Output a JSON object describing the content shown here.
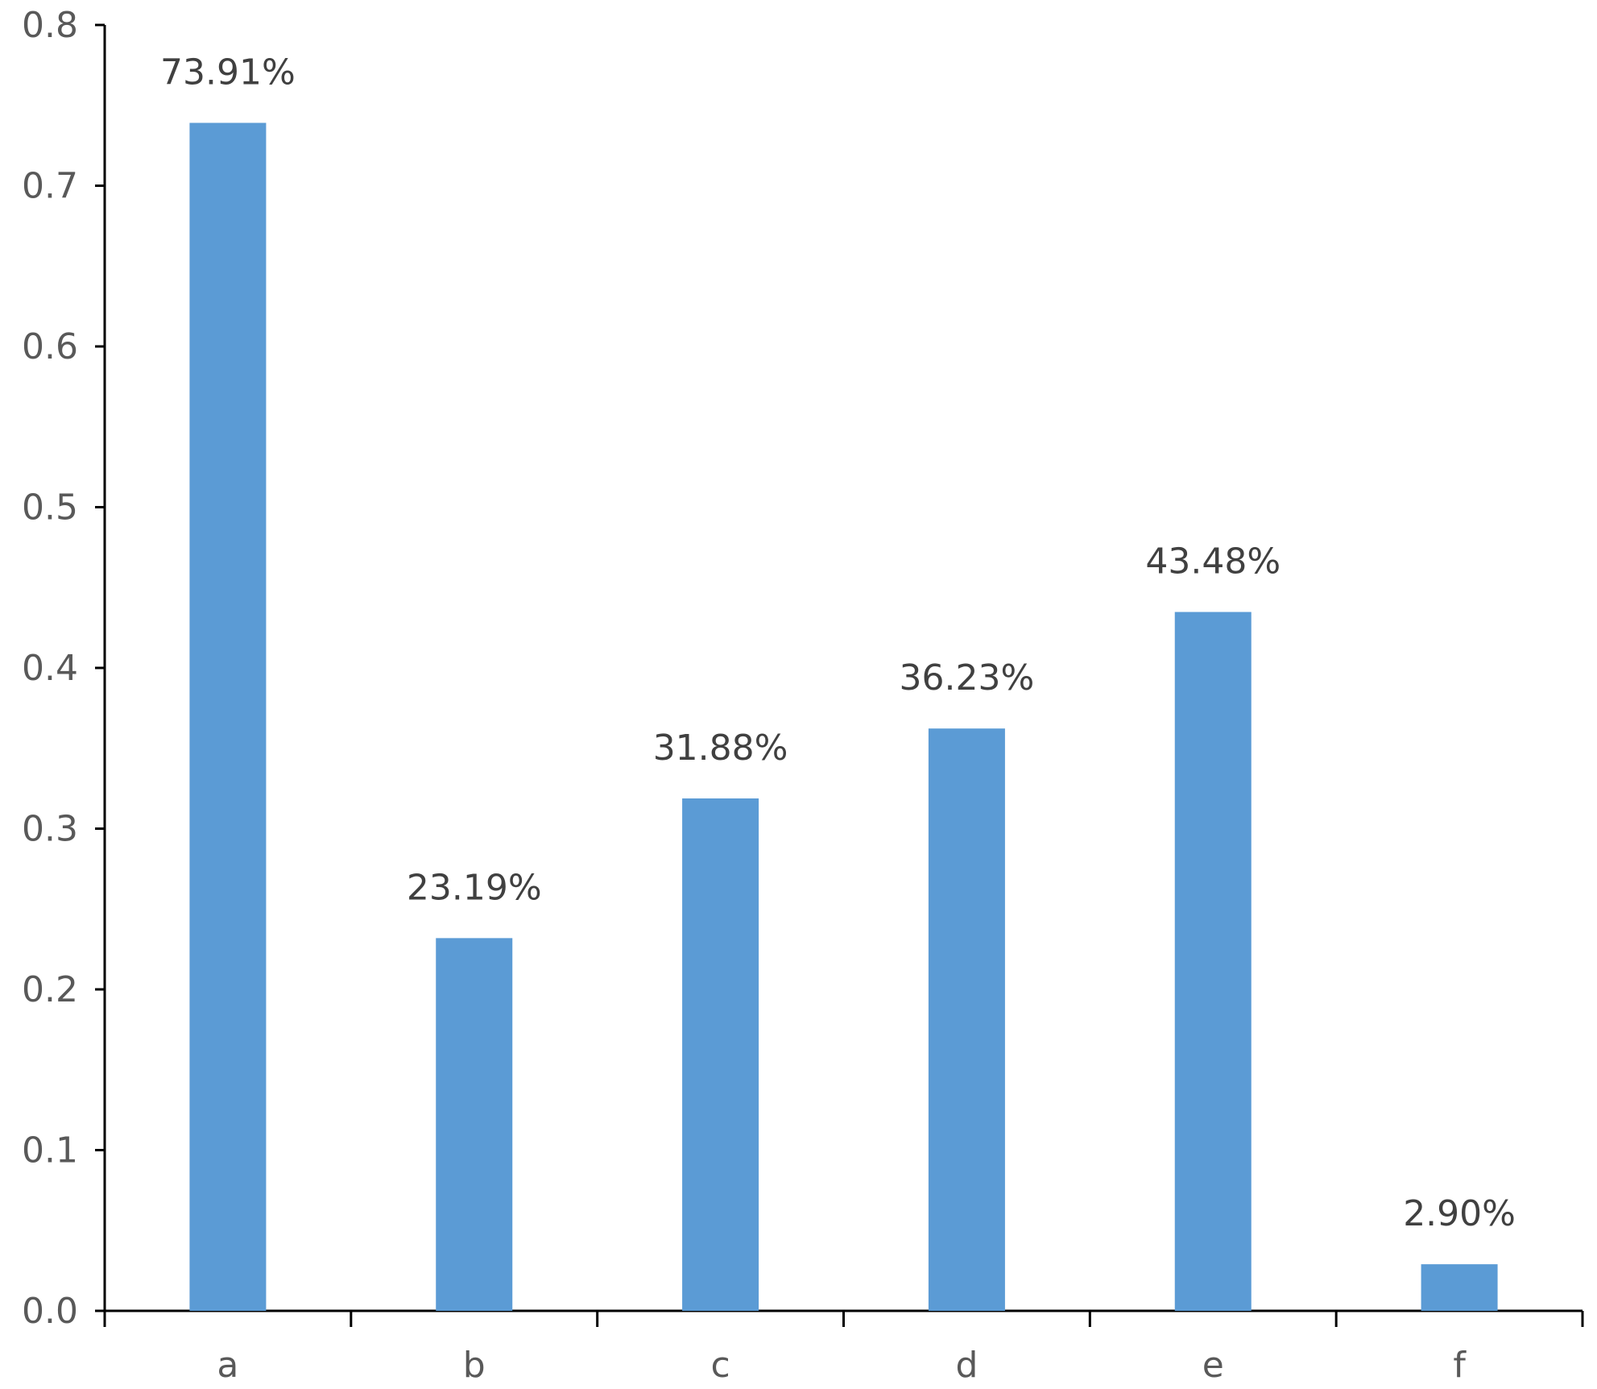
{
  "chart_data": {
    "type": "bar",
    "categories": [
      "a",
      "b",
      "c",
      "d",
      "e",
      "f"
    ],
    "values": [
      0.7391,
      0.2319,
      0.3188,
      0.3623,
      0.4348,
      0.029
    ],
    "data_labels": [
      "73.91%",
      "23.19%",
      "31.88%",
      "36.23%",
      "43.48%",
      "2.90%"
    ],
    "title": "",
    "xlabel": "",
    "ylabel": "",
    "ylim": [
      0,
      0.8
    ],
    "yticks": [
      "0.0",
      "0.1",
      "0.2",
      "0.3",
      "0.4",
      "0.5",
      "0.6",
      "0.7",
      "0.8"
    ],
    "grid": false,
    "legend": "none",
    "colors": {
      "bar": "#5b9bd5",
      "axis": "#000000"
    }
  }
}
